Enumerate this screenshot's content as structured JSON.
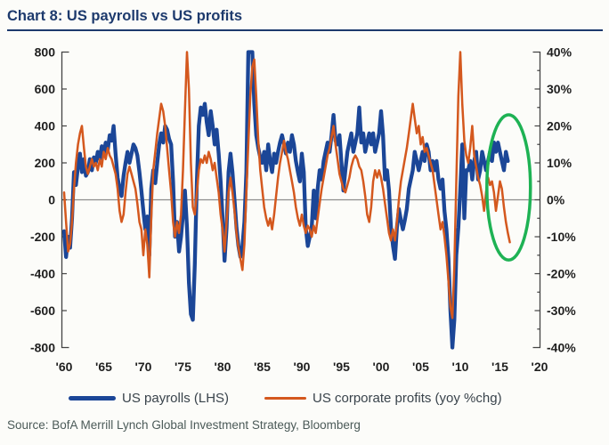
{
  "page": {
    "background": "#fcfcf9"
  },
  "chart": {
    "title": "Chart 8: US payrolls vs US profits",
    "title_color": "#1d3a6d",
    "source": "Source: BofA Merrill Lynch Global Investment Strategy, Bloomberg",
    "legend": [
      {
        "label": "US payrolls (LHS)",
        "color": "#1b4697"
      },
      {
        "label": "US corporate profits (yoy %chg)",
        "color": "#d4581e"
      }
    ]
  },
  "chart_data": {
    "type": "line",
    "title": "Chart 8: US payrolls vs US profits",
    "x_axis": {
      "tick_years": [
        1960,
        1965,
        1970,
        1975,
        1980,
        1985,
        1990,
        1995,
        2000,
        2005,
        2010,
        2015,
        2020
      ],
      "tick_labels": [
        "'60",
        "'65",
        "'70",
        "'75",
        "'80",
        "'85",
        "'90",
        "'95",
        "'00",
        "'05",
        "'10",
        "'15",
        "'20"
      ]
    },
    "left_axis": {
      "range": [
        -800,
        800
      ],
      "tick_values": [
        800,
        600,
        400,
        200,
        0,
        -200,
        -400,
        -600,
        -800
      ],
      "tick_labels": [
        "800",
        "600",
        "400",
        "200",
        "0",
        "-200",
        "-400",
        "-600",
        "-800"
      ]
    },
    "right_axis": {
      "range": [
        -40,
        40
      ],
      "tick_values": [
        40,
        30,
        20,
        10,
        0,
        -10,
        -20,
        -30,
        -40
      ],
      "tick_labels": [
        "40%",
        "30%",
        "20%",
        "10%",
        "0%",
        "-10%",
        "-20%",
        "-30%",
        "-40%"
      ],
      "minor_step": 5
    },
    "zero_line": true,
    "grid": false,
    "legend_position": "bottom",
    "series": [
      {
        "name": "US payrolls (LHS)",
        "axis": "left",
        "color": "#1b4697",
        "stroke_width": 4.3,
        "x_start": 1960,
        "x_step": 0.25,
        "values": [
          -170,
          -310,
          -200,
          -260,
          -100,
          150,
          80,
          180,
          250,
          150,
          220,
          130,
          150,
          220,
          160,
          230,
          200,
          260,
          220,
          290,
          250,
          310,
          270,
          350,
          320,
          400,
          250,
          120,
          60,
          20,
          130,
          200,
          260,
          200,
          250,
          300,
          280,
          240,
          150,
          50,
          -60,
          -160,
          -90,
          -300,
          60,
          160,
          90,
          200,
          300,
          360,
          310,
          400,
          380,
          330,
          300,
          100,
          -200,
          -120,
          -280,
          -200,
          -80,
          50,
          -150,
          -450,
          -620,
          -650,
          -350,
          100,
          400,
          500,
          460,
          520,
          420,
          350,
          480,
          400,
          300,
          380,
          250,
          100,
          -100,
          -330,
          -150,
          150,
          250,
          150,
          0,
          -150,
          -250,
          -310,
          -250,
          -120,
          150,
          800,
          800,
          800,
          520,
          350,
          280,
          230,
          200,
          260,
          160,
          300,
          210,
          150,
          250,
          200,
          260,
          310,
          350,
          300,
          250,
          310,
          260,
          350,
          300,
          210,
          150,
          100,
          250,
          150,
          -150,
          -250,
          -200,
          -150,
          50,
          -100,
          60,
          160,
          110,
          210,
          260,
          310,
          260,
          350,
          460,
          320,
          300,
          350,
          200,
          50,
          160,
          260,
          310,
          360,
          260,
          310,
          360,
          500,
          310,
          360,
          260,
          310,
          360,
          300,
          360,
          260,
          310,
          360,
          480,
          350,
          110,
          160,
          50,
          -150,
          -250,
          -320,
          -150,
          -50,
          -110,
          -160,
          -110,
          -50,
          60,
          110,
          160,
          260,
          210,
          160,
          210,
          260,
          210,
          300,
          260,
          160,
          210,
          160,
          210,
          110,
          60,
          110,
          -60,
          -160,
          -320,
          -600,
          -800,
          -650,
          -300,
          -150,
          60,
          300,
          -100,
          160,
          160,
          210,
          110,
          210,
          260,
          110,
          160,
          260,
          210,
          160,
          210,
          260,
          210,
          310,
          260,
          310,
          260,
          210,
          160,
          260,
          210
        ]
      },
      {
        "name": "US corporate profits (yoy %chg)",
        "axis": "right",
        "color": "#d4581e",
        "stroke_width": 2.5,
        "x_start": 1960,
        "x_step": 0.25,
        "values": [
          2,
          -6,
          -14,
          -12,
          -6,
          3,
          10,
          15,
          18,
          20,
          14,
          9,
          7,
          9,
          11,
          9,
          10,
          8,
          11,
          9,
          13,
          11,
          14,
          12,
          11,
          9,
          7,
          3,
          -3,
          -6,
          -4,
          2,
          7,
          9,
          7,
          5,
          3,
          -1,
          -6,
          -8,
          -15,
          -8,
          -12,
          -21,
          -5,
          8,
          13,
          18,
          22,
          26,
          24,
          20,
          14,
          8,
          2,
          -6,
          -10,
          -6,
          -9,
          -4,
          8,
          24,
          40,
          30,
          10,
          -2,
          -4,
          2,
          8,
          11,
          10,
          12,
          10,
          13,
          11,
          8,
          10,
          6,
          2,
          -4,
          -8,
          -14,
          -6,
          2,
          6,
          2,
          -3,
          -9,
          -13,
          -16,
          -19,
          -12,
          2,
          15,
          28,
          36,
          38,
          28,
          16,
          8,
          3,
          -2,
          -5,
          -7,
          -5,
          -8,
          -4,
          1,
          6,
          10,
          13,
          16,
          13,
          11,
          8,
          5,
          2,
          -2,
          -5,
          -7,
          -4,
          -7,
          -9,
          -7,
          -8,
          -10,
          -7,
          -9,
          -5,
          -1,
          3,
          6,
          9,
          12,
          14,
          17,
          20,
          15,
          11,
          7,
          5,
          3,
          2,
          4,
          6,
          9,
          11,
          12,
          11,
          9,
          8,
          5,
          1,
          -4,
          -6,
          -2,
          5,
          8,
          6,
          8,
          6,
          3,
          -1,
          -5,
          -9,
          -11,
          -8,
          -11,
          -6,
          0,
          5,
          8,
          11,
          14,
          18,
          22,
          26,
          22,
          18,
          20,
          15,
          17,
          13,
          14,
          12,
          10,
          8,
          4,
          0,
          -4,
          -8,
          -6,
          -10,
          -15,
          -22,
          -29,
          -32,
          -18,
          5,
          28,
          40,
          26,
          16,
          12,
          10,
          14,
          20,
          12,
          9,
          6,
          4,
          1,
          -3,
          2,
          6,
          4,
          5,
          2,
          -3,
          1,
          5,
          3,
          -2,
          -6,
          -9,
          -11.5
        ]
      }
    ],
    "annotation": {
      "shape": "ellipse",
      "color": "#1eb254",
      "stroke_width": 3.5,
      "center_year": 2016.1,
      "center_left_value": 67,
      "radius_years": 2.75,
      "radius_left_value": 393
    }
  }
}
